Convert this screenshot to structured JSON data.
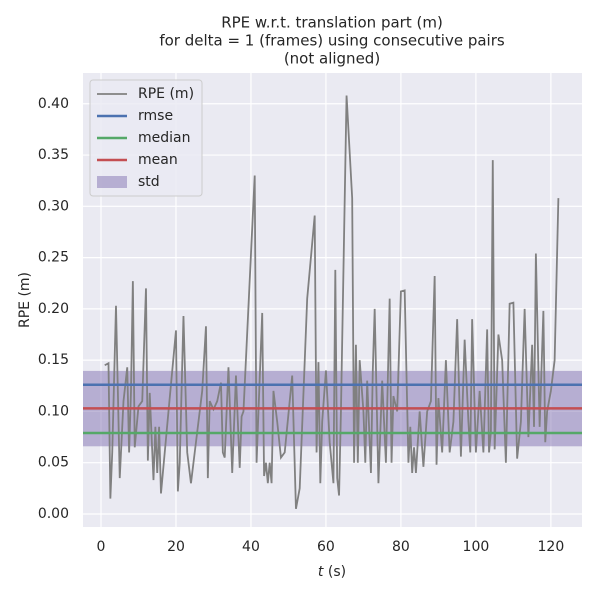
{
  "chart_data": {
    "type": "line",
    "title": [
      "RPE w.r.t. translation part (m)",
      "for delta = 1 (frames) using consecutive pairs",
      "(not aligned)"
    ],
    "xlabel": [
      "t",
      "(s)"
    ],
    "ylabel": "RPE (m)",
    "xlim": [
      -4.8,
      128.3
    ],
    "ylim": [
      -0.0127,
      0.43
    ],
    "xticks": [
      0,
      20,
      40,
      60,
      80,
      100,
      120
    ],
    "yticks": [
      {
        "value": 0,
        "label": "0.00"
      },
      {
        "value": 0.05,
        "label": "0.05"
      },
      {
        "value": 0.1,
        "label": "0.10"
      },
      {
        "value": 0.15,
        "label": "0.15"
      },
      {
        "value": 0.2,
        "label": "0.20"
      },
      {
        "value": 0.25,
        "label": "0.25"
      },
      {
        "value": 0.3,
        "label": "0.30"
      },
      {
        "value": 0.35,
        "label": "0.35"
      },
      {
        "value": 0.4,
        "label": "0.40"
      }
    ],
    "grid": true,
    "legend": "upper left",
    "series": [
      {
        "name": "RPE (m)",
        "color": "#808080",
        "x": [
          1,
          2,
          2.5,
          3,
          4,
          5,
          6,
          7,
          7.5,
          8,
          8.5,
          9,
          10,
          11,
          12,
          12.5,
          13,
          14,
          14.5,
          15,
          15.5,
          16,
          17,
          18,
          20,
          20.5,
          21,
          22,
          23,
          24,
          25,
          27,
          28,
          28.5,
          29,
          30,
          31,
          32,
          32.5,
          33,
          34,
          35,
          36,
          37,
          37.5,
          38,
          41,
          41.5,
          42,
          43,
          43.5,
          44,
          44.5,
          45,
          45.5,
          46,
          47,
          48,
          49,
          51,
          52,
          53,
          55,
          57,
          57.5,
          58,
          58.5,
          59,
          60,
          61,
          62,
          62.5,
          63,
          63.5,
          64,
          65.5,
          67,
          67.5,
          68,
          68.5,
          69,
          70,
          70.5,
          71,
          72,
          72.5,
          73,
          74,
          75,
          76,
          77,
          77.5,
          78,
          79,
          80,
          81,
          82,
          82.5,
          83,
          83.5,
          84,
          85,
          86,
          87,
          88,
          89,
          89.5,
          90,
          91,
          92,
          93,
          94,
          95,
          96,
          97,
          98,
          98.5,
          99,
          100,
          101,
          102,
          103,
          103.5,
          104,
          104.5,
          105,
          106,
          107,
          108,
          109,
          110,
          111,
          112,
          113,
          114,
          115,
          115.5,
          116,
          117,
          118,
          118.5,
          119,
          120,
          121,
          122
        ],
        "values": [
          0.145,
          0.147,
          0.015,
          0.06,
          0.203,
          0.035,
          0.11,
          0.143,
          0.06,
          0.12,
          0.227,
          0.065,
          0.105,
          0.11,
          0.22,
          0.052,
          0.118,
          0.033,
          0.085,
          0.04,
          0.085,
          0.02,
          0.06,
          0.1,
          0.179,
          0.022,
          0.05,
          0.193,
          0.06,
          0.03,
          0.06,
          0.12,
          0.183,
          0.035,
          0.11,
          0.102,
          0.11,
          0.128,
          0.06,
          0.055,
          0.143,
          0.04,
          0.135,
          0.045,
          0.095,
          0.1,
          0.33,
          0.05,
          0.1,
          0.196,
          0.037,
          0.05,
          0.03,
          0.05,
          0.03,
          0.12,
          0.09,
          0.055,
          0.06,
          0.135,
          0.005,
          0.025,
          0.21,
          0.291,
          0.06,
          0.148,
          0.03,
          0.09,
          0.14,
          0.07,
          0.03,
          0.238,
          0.035,
          0.018,
          0.1,
          0.408,
          0.308,
          0.05,
          0.165,
          0.05,
          0.15,
          0.1,
          0.05,
          0.13,
          0.04,
          0.14,
          0.2,
          0.03,
          0.13,
          0.05,
          0.21,
          0.05,
          0.115,
          0.1,
          0.217,
          0.218,
          0.05,
          0.085,
          0.04,
          0.065,
          0.04,
          0.1,
          0.046,
          0.1,
          0.11,
          0.232,
          0.048,
          0.113,
          0.06,
          0.15,
          0.06,
          0.09,
          0.19,
          0.056,
          0.17,
          0.09,
          0.06,
          0.19,
          0.06,
          0.12,
          0.06,
          0.18,
          0.06,
          0.08,
          0.345,
          0.063,
          0.175,
          0.15,
          0.05,
          0.205,
          0.206,
          0.054,
          0.09,
          0.2,
          0.075,
          0.165,
          0.085,
          0.254,
          0.085,
          0.198,
          0.07,
          0.1,
          0.12,
          0.15,
          0.308
        ]
      }
    ],
    "hlines": [
      {
        "name": "rmse",
        "color": "#4c72b0",
        "value": 0.126
      },
      {
        "name": "median",
        "color": "#55a868",
        "value": 0.079
      },
      {
        "name": "mean",
        "color": "#c44e52",
        "value": 0.103
      }
    ],
    "band": {
      "name": "std",
      "color": "#8172b2",
      "range": [
        0.066,
        0.1395
      ]
    }
  }
}
